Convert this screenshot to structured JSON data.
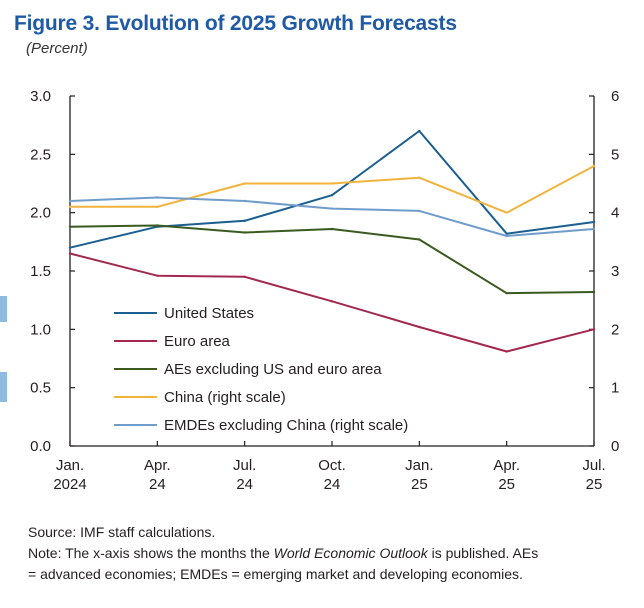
{
  "figure": {
    "title": "Figure 3.  Evolution of 2025 Growth Forecasts",
    "subtitle": "(Percent)"
  },
  "chart_data": {
    "type": "line",
    "categories": [
      "Jan.\n2024",
      "Apr.\n24",
      "Jul.\n24",
      "Oct.\n24",
      "Jan.\n25",
      "Apr.\n25",
      "Jul.\n25"
    ],
    "left_axis": {
      "ylim": [
        0.0,
        3.0
      ],
      "ticks": [
        "0.0",
        "0.5",
        "1.0",
        "1.5",
        "2.0",
        "2.5",
        "3.0"
      ]
    },
    "right_axis": {
      "ylim": [
        0,
        6
      ],
      "ticks": [
        "0",
        "1",
        "2",
        "3",
        "4",
        "5",
        "6"
      ]
    },
    "series": [
      {
        "name": "United States",
        "axis": "left",
        "color": "#1a5f8f",
        "values": [
          1.7,
          1.88,
          1.93,
          2.15,
          2.7,
          1.82,
          1.92
        ]
      },
      {
        "name": "Euro area",
        "axis": "left",
        "color": "#a3284e",
        "values": [
          1.65,
          1.46,
          1.45,
          1.24,
          1.02,
          0.81,
          1.0
        ]
      },
      {
        "name": "AEs excluding US and euro area",
        "axis": "left",
        "color": "#3a5a1f",
        "values": [
          1.88,
          1.89,
          1.83,
          1.86,
          1.77,
          1.31,
          1.32
        ]
      },
      {
        "name": "China (right scale)",
        "axis": "right",
        "color": "#f2b33d",
        "values": [
          4.1,
          4.1,
          4.5,
          4.5,
          4.6,
          4.0,
          4.8
        ]
      },
      {
        "name": "EMDEs excluding China (right scale)",
        "axis": "right",
        "color": "#6f9ccb",
        "values": [
          4.2,
          4.26,
          4.2,
          4.07,
          4.03,
          3.6,
          3.72
        ]
      }
    ]
  },
  "notes": {
    "source": "Source: IMF staff calculations.",
    "note_prefix": "Note: The x-axis shows the months the ",
    "note_italic": "World Economic Outlook",
    "note_suffix": " is published. AEs",
    "note_line2": "= advanced economies; EMDEs = emerging market and developing economies."
  }
}
